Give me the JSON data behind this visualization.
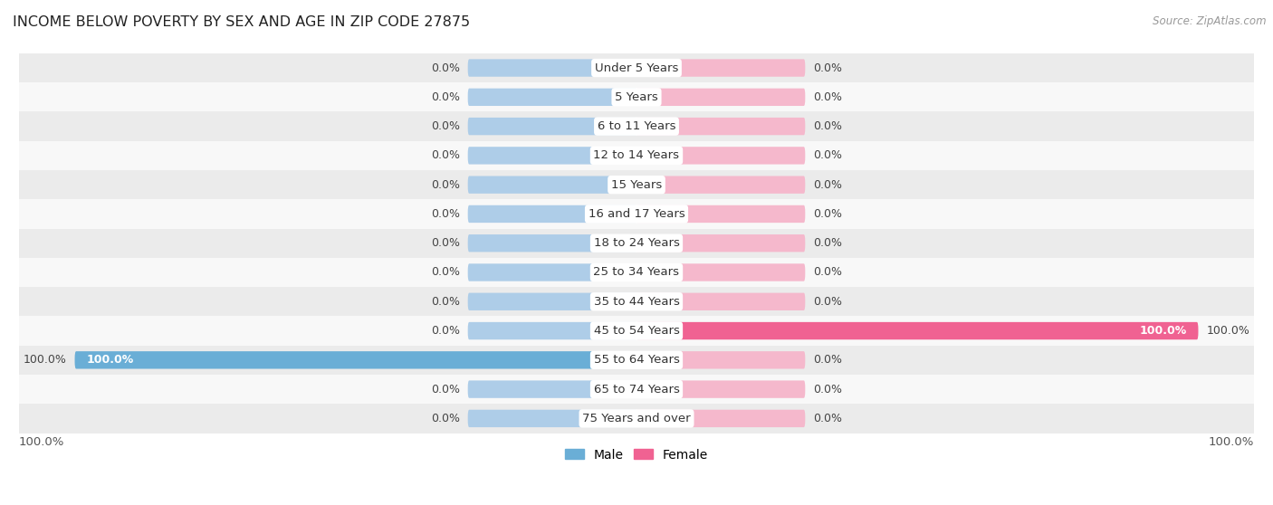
{
  "title": "INCOME BELOW POVERTY BY SEX AND AGE IN ZIP CODE 27875",
  "source": "Source: ZipAtlas.com",
  "categories": [
    "Under 5 Years",
    "5 Years",
    "6 to 11 Years",
    "12 to 14 Years",
    "15 Years",
    "16 and 17 Years",
    "18 to 24 Years",
    "25 to 34 Years",
    "35 to 44 Years",
    "45 to 54 Years",
    "55 to 64 Years",
    "65 to 74 Years",
    "75 Years and over"
  ],
  "male_values": [
    0.0,
    0.0,
    0.0,
    0.0,
    0.0,
    0.0,
    0.0,
    0.0,
    0.0,
    0.0,
    100.0,
    0.0,
    0.0
  ],
  "female_values": [
    0.0,
    0.0,
    0.0,
    0.0,
    0.0,
    0.0,
    0.0,
    0.0,
    0.0,
    100.0,
    0.0,
    0.0,
    0.0
  ],
  "male_active_color": "#6aaed6",
  "female_active_color": "#f06292",
  "male_stub_color": "#aecde8",
  "female_stub_color": "#f5b8cc",
  "row_bg_odd": "#ebebeb",
  "row_bg_even": "#f8f8f8",
  "male_label": "Male",
  "female_label": "Female",
  "stub_value": 30,
  "max_value": 100,
  "title_fontsize": 11.5,
  "value_fontsize": 9,
  "cat_fontsize": 9.5,
  "legend_fontsize": 10
}
